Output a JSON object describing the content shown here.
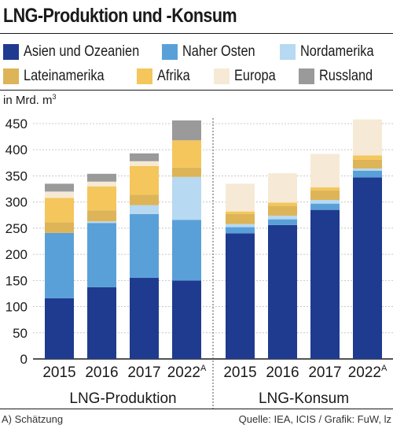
{
  "title": "LNG-Produktion und -Konsum",
  "unit_label": "in Mrd. m",
  "unit_sup": "3",
  "footnote": "A) Schätzung",
  "source": "Quelle: IEA, ICIS / Grafik: FuW, lz",
  "colors": {
    "Asien und Ozeanien": "#1f3b8f",
    "Naher Osten": "#5aa0d8",
    "Nordamerika": "#b7d9f2",
    "Lateinamerika": "#ddb457",
    "Afrika": "#f4c65b",
    "Europa": "#f6ead6",
    "Russland": "#9a9a9a"
  },
  "chart_data": {
    "type": "bar",
    "stacked": true,
    "ylim": [
      0,
      450
    ],
    "yticks": [
      0,
      50,
      100,
      150,
      200,
      250,
      300,
      350,
      400,
      450
    ],
    "grid": true,
    "legend_position": "top",
    "groups": [
      {
        "label": "LNG-Produktion",
        "categories": [
          {
            "label": "2015",
            "sup": ""
          },
          {
            "label": "2016",
            "sup": ""
          },
          {
            "label": "2017",
            "sup": ""
          },
          {
            "label": "2022",
            "sup": "A"
          }
        ],
        "series": [
          {
            "name": "Asien und Ozeanien",
            "values": [
              116,
              137,
              155,
              150
            ]
          },
          {
            "name": "Naher Osten",
            "values": [
              125,
              123,
              122,
              116
            ]
          },
          {
            "name": "Nordamerika",
            "values": [
              0,
              3,
              17,
              82
            ]
          },
          {
            "name": "Lateinamerika",
            "values": [
              20,
              21,
              20,
              18
            ]
          },
          {
            "name": "Afrika",
            "values": [
              47,
              46,
              55,
              52
            ]
          },
          {
            "name": "Europa",
            "values": [
              12,
              9,
              9,
              0
            ]
          },
          {
            "name": "Russland",
            "values": [
              15,
              15,
              15,
              38
            ]
          }
        ]
      },
      {
        "label": "LNG-Konsum",
        "categories": [
          {
            "label": "2015",
            "sup": ""
          },
          {
            "label": "2016",
            "sup": ""
          },
          {
            "label": "2017",
            "sup": ""
          },
          {
            "label": "2022",
            "sup": "A"
          }
        ],
        "series": [
          {
            "name": "Asien und Ozeanien",
            "values": [
              240,
              256,
              285,
              347
            ]
          },
          {
            "name": "Naher Osten",
            "values": [
              12,
              11,
              12,
              13
            ]
          },
          {
            "name": "Nordamerika",
            "values": [
              6,
              7,
              7,
              4
            ]
          },
          {
            "name": "Lateinamerika",
            "values": [
              19,
              19,
              18,
              17
            ]
          },
          {
            "name": "Afrika",
            "values": [
              5,
              6,
              6,
              8
            ]
          },
          {
            "name": "Europa",
            "values": [
              53,
              56,
              64,
              69
            ]
          },
          {
            "name": "Russland",
            "values": [
              0,
              0,
              0,
              0
            ]
          }
        ]
      }
    ]
  }
}
